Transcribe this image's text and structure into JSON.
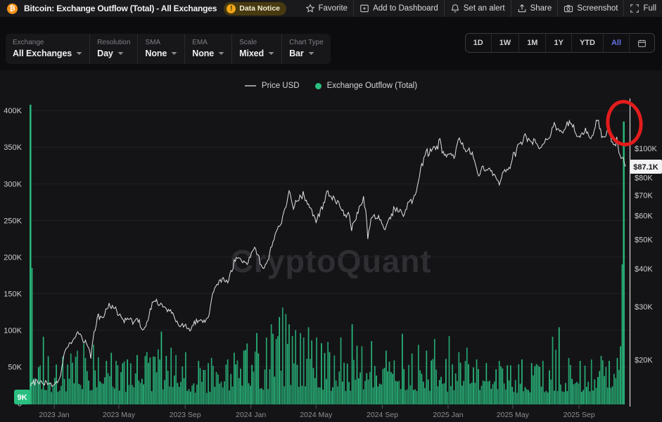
{
  "header": {
    "title": "Bitcoin: Exchange Outflow (Total) - All Exchanges",
    "data_notice": "Data Notice",
    "actions": [
      "Favorite",
      "Add to Dashboard",
      "Set an alert",
      "Share",
      "Screenshot",
      "Full"
    ]
  },
  "toolbar": {
    "controls": [
      {
        "label": "Exchange",
        "value": "All Exchanges"
      },
      {
        "label": "Resolution",
        "value": "Day"
      },
      {
        "label": "SMA",
        "value": "None"
      },
      {
        "label": "EMA",
        "value": "None"
      },
      {
        "label": "Scale",
        "value": "Mixed"
      },
      {
        "label": "Chart Type",
        "value": "Bar"
      }
    ],
    "ranges": [
      "1D",
      "1W",
      "1M",
      "1Y",
      "YTD",
      "All"
    ],
    "active_range": "All"
  },
  "legend": {
    "price": "Price USD",
    "outflow": "Exchange Outflow (Total)"
  },
  "watermark": "CryptoQuant",
  "colors": {
    "bars_green": "#2abf81",
    "price_line": "#e2e2e4",
    "annotation_red": "#e31c1c",
    "active_range_blue": "#6673e8",
    "notice_amber": "#f0a519",
    "bitcoin_orange": "#f7931a"
  },
  "chart_data": {
    "type": "bar+line",
    "title": "Bitcoin: Exchange Outflow (Total) - All Exchanges",
    "x_ticks": [
      "2023 Jan",
      "2023 May",
      "2023 Sep",
      "2024 Jan",
      "2024 May",
      "2024 Sep",
      "2025 Jan",
      "2025 May",
      "2025 Sep"
    ],
    "x_tick_days": [
      44,
      164,
      287,
      409,
      530,
      653,
      775,
      895,
      1018
    ],
    "days_span": 1109,
    "left_axis": {
      "series": "Exchange Outflow (Total)",
      "scale": "linear",
      "ticks": [
        "400K",
        "350K",
        "300K",
        "250K",
        "200K",
        "150K",
        "100K",
        "50K",
        "0"
      ],
      "tick_values": [
        400,
        350,
        300,
        250,
        200,
        150,
        100,
        50,
        0
      ],
      "last_value_label": "9K",
      "last_value": 9
    },
    "right_axis": {
      "series": "Price USD",
      "scale": "log",
      "ticks": [
        "$100K",
        "$80K",
        "$70K",
        "$60K",
        "$50K",
        "$40K",
        "$30K",
        "$20K"
      ],
      "tick_values": [
        100,
        80,
        70,
        60,
        50,
        40,
        30,
        20
      ],
      "last_value_label": "$87.1K",
      "last_value": 87.1
    },
    "price_anchors_dayK": [
      [
        0,
        16.6
      ],
      [
        14,
        17.1
      ],
      [
        28,
        16.9
      ],
      [
        43,
        16.5
      ],
      [
        55,
        17.3
      ],
      [
        62,
        20.9
      ],
      [
        75,
        23.1
      ],
      [
        88,
        24.6
      ],
      [
        100,
        23.2
      ],
      [
        108,
        22.4
      ],
      [
        112,
        20.2
      ],
      [
        118,
        24.7
      ],
      [
        125,
        28.0
      ],
      [
        134,
        27.6
      ],
      [
        147,
        30.4
      ],
      [
        156,
        29.4
      ],
      [
        163,
        28.1
      ],
      [
        175,
        27.0
      ],
      [
        185,
        27.4
      ],
      [
        190,
        26.8
      ],
      [
        200,
        27.3
      ],
      [
        209,
        25.1
      ],
      [
        217,
        26.3
      ],
      [
        225,
        30.6
      ],
      [
        237,
        31.2
      ],
      [
        246,
        29.9
      ],
      [
        260,
        29.2
      ],
      [
        272,
        26.1
      ],
      [
        285,
        26.0
      ],
      [
        297,
        25.2
      ],
      [
        305,
        26.6
      ],
      [
        315,
        27.0
      ],
      [
        327,
        26.8
      ],
      [
        332,
        28.0
      ],
      [
        340,
        34.2
      ],
      [
        348,
        35.1
      ],
      [
        356,
        37.3
      ],
      [
        366,
        36.8
      ],
      [
        377,
        41.3
      ],
      [
        385,
        43.8
      ],
      [
        395,
        42.0
      ],
      [
        404,
        42.6
      ],
      [
        416,
        46.9
      ],
      [
        424,
        42.8
      ],
      [
        431,
        39.6
      ],
      [
        440,
        43.1
      ],
      [
        448,
        48.0
      ],
      [
        455,
        52.0
      ],
      [
        466,
        57.1
      ],
      [
        473,
        63.0
      ],
      [
        481,
        73.1
      ],
      [
        487,
        62.5
      ],
      [
        495,
        67.8
      ],
      [
        507,
        70.7
      ],
      [
        514,
        65.5
      ],
      [
        520,
        64.0
      ],
      [
        526,
        60.6
      ],
      [
        530,
        57.5
      ],
      [
        538,
        62.4
      ],
      [
        545,
        66.2
      ],
      [
        550,
        71.4
      ],
      [
        558,
        69.0
      ],
      [
        565,
        67.7
      ],
      [
        572,
        64.8
      ],
      [
        584,
        60.2
      ],
      [
        590,
        62.1
      ],
      [
        595,
        54.3
      ],
      [
        603,
        58.0
      ],
      [
        611,
        64.0
      ],
      [
        618,
        68.1
      ],
      [
        622,
        61.5
      ],
      [
        626,
        50.5
      ],
      [
        631,
        56.8
      ],
      [
        635,
        60.9
      ],
      [
        641,
        58.5
      ],
      [
        648,
        59.2
      ],
      [
        657,
        53.9
      ],
      [
        663,
        57.6
      ],
      [
        670,
        60.1
      ],
      [
        676,
        63.3
      ],
      [
        683,
        62.7
      ],
      [
        690,
        60.8
      ],
      [
        695,
        60.3
      ],
      [
        700,
        66.7
      ],
      [
        703,
        68.4
      ],
      [
        708,
        66.6
      ],
      [
        713,
        69.9
      ],
      [
        718,
        75.5
      ],
      [
        722,
        80.4
      ],
      [
        725,
        88.0
      ],
      [
        729,
        91.0
      ],
      [
        732,
        94.2
      ],
      [
        735,
        98.4
      ],
      [
        739,
        95.7
      ],
      [
        743,
        97.9
      ],
      [
        748,
        101.1
      ],
      [
        753,
        99.8
      ],
      [
        760,
        106.1
      ],
      [
        764,
        97.4
      ],
      [
        768,
        95.2
      ],
      [
        773,
        92.6
      ],
      [
        778,
        96.9
      ],
      [
        782,
        95.0
      ],
      [
        787,
        91.6
      ],
      [
        790,
        100.0
      ],
      [
        794,
        107.2
      ],
      [
        798,
        104.8
      ],
      [
        801,
        102.1
      ],
      [
        805,
        99.5
      ],
      [
        809,
        96.6
      ],
      [
        813,
        97.8
      ],
      [
        817,
        95.8
      ],
      [
        821,
        96.3
      ],
      [
        826,
        88.7
      ],
      [
        833,
        79.9
      ],
      [
        836,
        84.3
      ],
      [
        840,
        86.9
      ],
      [
        845,
        83.9
      ],
      [
        850,
        86.1
      ],
      [
        855,
        82.8
      ],
      [
        860,
        83.7
      ],
      [
        865,
        79.2
      ],
      [
        871,
        76.5
      ],
      [
        876,
        83.3
      ],
      [
        880,
        84.6
      ],
      [
        885,
        85.2
      ],
      [
        890,
        87.5
      ],
      [
        896,
        94.3
      ],
      [
        901,
        96.9
      ],
      [
        904,
        102.9
      ],
      [
        908,
        104.2
      ],
      [
        912,
        103.3
      ],
      [
        916,
        110.7
      ],
      [
        920,
        109.0
      ],
      [
        925,
        106.2
      ],
      [
        930,
        104.7
      ],
      [
        935,
        105.6
      ],
      [
        940,
        101.2
      ],
      [
        947,
        99.5
      ],
      [
        952,
        101.6
      ],
      [
        956,
        105.9
      ],
      [
        960,
        108.1
      ],
      [
        964,
        110.2
      ],
      [
        969,
        117.5
      ],
      [
        973,
        119.1
      ],
      [
        977,
        115.1
      ],
      [
        981,
        114.6
      ],
      [
        985,
        113.2
      ],
      [
        989,
        114.7
      ],
      [
        993,
        117.4
      ],
      [
        997,
        119.9
      ],
      [
        1000,
        123.3
      ],
      [
        1004,
        121.0
      ],
      [
        1008,
        117.2
      ],
      [
        1012,
        112.9
      ],
      [
        1017,
        108.8
      ],
      [
        1021,
        110.1
      ],
      [
        1025,
        112.0
      ],
      [
        1030,
        114.4
      ],
      [
        1034,
        112.3
      ],
      [
        1038,
        109.3
      ],
      [
        1043,
        109.7
      ],
      [
        1047,
        115.9
      ],
      [
        1050,
        122.6
      ],
      [
        1053,
        125.9
      ],
      [
        1056,
        115.3
      ],
      [
        1060,
        111.6
      ],
      [
        1064,
        107.3
      ],
      [
        1068,
        110.9
      ],
      [
        1071,
        113.8
      ],
      [
        1074,
        115.4
      ],
      [
        1078,
        106.9
      ],
      [
        1082,
        101.4
      ],
      [
        1085,
        103.6
      ],
      [
        1088,
        106.1
      ],
      [
        1091,
        99.3
      ],
      [
        1094,
        95.1
      ],
      [
        1097,
        91.2
      ],
      [
        1100,
        93.4
      ],
      [
        1102,
        89.6
      ],
      [
        1104,
        87.1
      ]
    ],
    "outflow_envelope_dayK": [
      [
        0,
        62
      ],
      [
        30,
        56
      ],
      [
        60,
        60
      ],
      [
        120,
        63
      ],
      [
        180,
        58
      ],
      [
        240,
        64
      ],
      [
        300,
        52
      ],
      [
        355,
        50
      ],
      [
        410,
        64
      ],
      [
        440,
        78
      ],
      [
        468,
        100
      ],
      [
        500,
        88
      ],
      [
        530,
        74
      ],
      [
        570,
        64
      ],
      [
        620,
        58
      ],
      [
        680,
        58
      ],
      [
        740,
        56
      ],
      [
        800,
        56
      ],
      [
        860,
        48
      ],
      [
        920,
        50
      ],
      [
        980,
        56
      ],
      [
        1040,
        52
      ],
      [
        1080,
        58
      ],
      [
        1104,
        60
      ]
    ],
    "outflow_spikes_dayK": [
      [
        0,
        408
      ],
      [
        3,
        185
      ],
      [
        24,
        91
      ],
      [
        60,
        64
      ],
      [
        75,
        68
      ],
      [
        87,
        72
      ],
      [
        102,
        62
      ],
      [
        117,
        80
      ],
      [
        126,
        63
      ],
      [
        141,
        58
      ],
      [
        160,
        58
      ],
      [
        180,
        60
      ],
      [
        198,
        66
      ],
      [
        216,
        70
      ],
      [
        228,
        64
      ],
      [
        244,
        98
      ],
      [
        262,
        76
      ],
      [
        270,
        66
      ],
      [
        288,
        70
      ],
      [
        312,
        58
      ],
      [
        330,
        55
      ],
      [
        336,
        62
      ],
      [
        366,
        60
      ],
      [
        396,
        72
      ],
      [
        420,
        96
      ],
      [
        447,
        108
      ],
      [
        450,
        95
      ],
      [
        456,
        88
      ],
      [
        462,
        118
      ],
      [
        468,
        131
      ],
      [
        474,
        122
      ],
      [
        480,
        108
      ],
      [
        486,
        92
      ],
      [
        492,
        100
      ],
      [
        501,
        96
      ],
      [
        507,
        90
      ],
      [
        516,
        104
      ],
      [
        522,
        86
      ],
      [
        531,
        90
      ],
      [
        552,
        84
      ],
      [
        576,
        90
      ],
      [
        597,
        108
      ],
      [
        615,
        78
      ],
      [
        633,
        85
      ],
      [
        660,
        72
      ],
      [
        690,
        95
      ],
      [
        708,
        68
      ],
      [
        720,
        80
      ],
      [
        735,
        72
      ],
      [
        750,
        88
      ],
      [
        777,
        92
      ],
      [
        795,
        70
      ],
      [
        810,
        76
      ],
      [
        828,
        60
      ],
      [
        845,
        55
      ],
      [
        870,
        58
      ],
      [
        890,
        52
      ],
      [
        912,
        60
      ],
      [
        930,
        55
      ],
      [
        950,
        58
      ],
      [
        969,
        91
      ],
      [
        980,
        104
      ],
      [
        1000,
        62
      ],
      [
        1020,
        58
      ],
      [
        1040,
        60
      ],
      [
        1060,
        65
      ],
      [
        1075,
        58
      ],
      [
        1089,
        62
      ],
      [
        1095,
        78
      ],
      [
        1098,
        190
      ],
      [
        1101,
        385
      ]
    ],
    "annotation": {
      "shape": "ellipse",
      "meaning": "highlight of latest outflow spike",
      "color": "#e31c1c"
    }
  }
}
